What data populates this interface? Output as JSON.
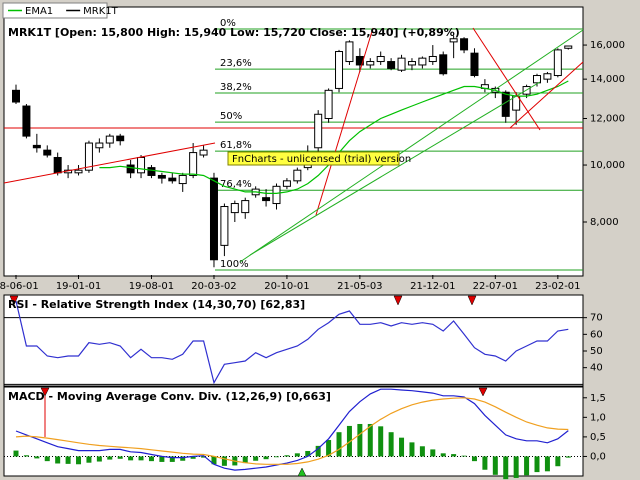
{
  "chart_data": [
    {
      "type": "candlestick",
      "title": "MRK1T [Open: 15,800  High: 15,940  Low: 15,720  Close: 15,940] (+0,89%)",
      "annotation": "FnCharts - unlicensed (trial) version",
      "log_scale": true,
      "ylim": [
        6500,
        18500
      ],
      "yticks": [
        {
          "value": 8000,
          "label": "8,000"
        },
        {
          "value": 10000,
          "label": "10,000"
        },
        {
          "value": 12000,
          "label": "12,000"
        },
        {
          "value": 14000,
          "label": "14,000"
        },
        {
          "value": 16000,
          "label": "16,000"
        }
      ],
      "xticks": [
        {
          "value": 0,
          "label": "18-06-01"
        },
        {
          "value": 6,
          "label": "19-01-01"
        },
        {
          "value": 13,
          "label": "19-08-01"
        },
        {
          "value": 19,
          "label": "20-03-02"
        },
        {
          "value": 26,
          "label": "20-10-01"
        },
        {
          "value": 33,
          "label": "21-05-03"
        },
        {
          "value": 40,
          "label": "21-12-01"
        },
        {
          "value": 46,
          "label": "22-07-01"
        },
        {
          "value": 52,
          "label": "23-02-01"
        }
      ],
      "reference_line": {
        "value": 11560,
        "color": "#e00000"
      },
      "fib_color": "#22a022",
      "fib_levels": [
        {
          "value": 17040,
          "label": "0%"
        },
        {
          "value": 14560,
          "label": "23,6%"
        },
        {
          "value": 13260,
          "label": "38,2%"
        },
        {
          "value": 11830,
          "label": "50%"
        },
        {
          "value": 10560,
          "label": "61,8%"
        },
        {
          "value": 9060,
          "label": "76,4%"
        },
        {
          "value": 6630,
          "label": "100%"
        }
      ],
      "series": [
        {
          "name": "MRK1T",
          "color": "#000000",
          "open": [
            13400,
            12600,
            10800,
            10600,
            10300,
            9700,
            9700,
            9800,
            10700,
            10900,
            11200,
            10000,
            9700,
            9900,
            9600,
            9500,
            9300,
            9600,
            10400,
            9500,
            7300,
            8300,
            8300,
            8900,
            8800,
            8600,
            9200,
            9400,
            9900,
            10700,
            12000,
            13500,
            15000,
            15300,
            14800,
            15000,
            15000,
            14500,
            14800,
            14800,
            15000,
            15400,
            16200,
            16400,
            15500,
            13500,
            13300,
            13300,
            12400,
            13200,
            13800,
            14000,
            14200,
            15800
          ],
          "high": [
            13700,
            12700,
            11300,
            10800,
            10500,
            10000,
            10000,
            11000,
            11100,
            11300,
            11300,
            10200,
            10400,
            10000,
            9700,
            9700,
            9700,
            10900,
            10800,
            9700,
            8600,
            8700,
            8800,
            9200,
            9100,
            9300,
            9500,
            9900,
            10800,
            12400,
            13500,
            15700,
            16300,
            15800,
            15200,
            15600,
            15200,
            15400,
            15200,
            15300,
            16000,
            15600,
            16600,
            16500,
            15800,
            14000,
            13600,
            13400,
            13300,
            13700,
            14300,
            14400,
            15800,
            15940
          ],
          "low": [
            12700,
            11100,
            10500,
            10300,
            9600,
            9500,
            9600,
            9700,
            10500,
            10700,
            10800,
            9500,
            9500,
            9500,
            9300,
            9300,
            9000,
            9500,
            10300,
            6700,
            7000,
            8000,
            8100,
            8800,
            8500,
            8400,
            9100,
            9300,
            9800,
            10500,
            11800,
            13300,
            14800,
            14400,
            14600,
            14800,
            14500,
            14400,
            14500,
            14600,
            14800,
            14200,
            15200,
            15500,
            14100,
            13300,
            13000,
            11800,
            11700,
            13000,
            13600,
            13800,
            14100,
            15720
          ],
          "close": [
            12800,
            11200,
            10700,
            10400,
            9700,
            9800,
            9800,
            10900,
            10900,
            11200,
            11000,
            9700,
            10300,
            9600,
            9500,
            9400,
            9600,
            10500,
            10600,
            6900,
            8500,
            8600,
            8700,
            9100,
            8700,
            9200,
            9400,
            9800,
            10500,
            12200,
            13400,
            15600,
            16200,
            14800,
            15000,
            15300,
            14600,
            15200,
            15000,
            15200,
            15300,
            14300,
            16400,
            15700,
            14200,
            13700,
            13500,
            12100,
            13100,
            13600,
            14200,
            14300,
            15700,
            15940
          ]
        },
        {
          "name": "EMA1",
          "color": "#00c000",
          "values": [
            null,
            null,
            null,
            null,
            null,
            null,
            null,
            null,
            9900,
            9900,
            9950,
            9900,
            9850,
            9800,
            9750,
            9700,
            9650,
            9650,
            9600,
            9400,
            9200,
            9100,
            9000,
            9000,
            8950,
            8950,
            9000,
            9100,
            9300,
            9600,
            10000,
            10500,
            11000,
            11400,
            11700,
            12000,
            12200,
            12400,
            12600,
            12800,
            13000,
            13200,
            13400,
            13600,
            13600,
            13500,
            13400,
            13200,
            13100,
            13100,
            13200,
            13400,
            13600,
            13900
          ]
        }
      ]
    },
    {
      "type": "line",
      "title": "RSI - Relative Strength Index (14,30,70) [62,83]",
      "ylim": [
        29,
        83
      ],
      "yticks": [
        40,
        50,
        60,
        70
      ],
      "hlines": [
        70,
        30
      ],
      "series": [
        {
          "color": "#3030d0",
          "values": [
            80,
            53,
            53,
            47,
            46,
            47,
            47,
            55,
            54,
            55,
            53,
            46,
            51,
            46,
            46,
            45,
            48,
            56,
            56,
            31,
            42,
            43,
            44,
            49,
            46,
            49,
            51,
            53,
            57,
            63,
            67,
            72,
            74,
            66,
            66,
            67,
            65,
            67,
            66,
            67,
            66,
            62,
            68,
            60,
            52,
            48,
            47,
            44,
            50,
            53,
            56,
            56,
            62,
            63
          ]
        }
      ]
    },
    {
      "type": "line",
      "title": "MACD - Moving Average Conv. Div. (12,26,9) [0,663]",
      "ylim": [
        -0.5,
        1.75
      ],
      "yticks": [
        {
          "value": 0,
          "label": "0,0"
        },
        {
          "value": 0.5,
          "label": "0,5"
        },
        {
          "value": 1,
          "label": "1,0"
        },
        {
          "value": 1.5,
          "label": "1,5"
        }
      ],
      "histogram": {
        "color": "#109010",
        "values": [
          0.15,
          0.03,
          -0.05,
          -0.12,
          -0.18,
          -0.19,
          -0.2,
          -0.16,
          -0.13,
          -0.08,
          -0.06,
          -0.1,
          -0.1,
          -0.12,
          -0.14,
          -0.14,
          -0.11,
          -0.06,
          -0.03,
          -0.2,
          -0.24,
          -0.23,
          -0.17,
          -0.11,
          -0.07,
          -0.02,
          0.03,
          0.08,
          0.14,
          0.27,
          0.42,
          0.62,
          0.78,
          0.83,
          0.83,
          0.77,
          0.62,
          0.48,
          0.36,
          0.26,
          0.18,
          0.08,
          0.06,
          0.02,
          -0.12,
          -0.34,
          -0.47,
          -0.58,
          -0.55,
          -0.48,
          -0.4,
          -0.38,
          -0.25,
          -0.03
        ]
      },
      "series": [
        {
          "color": "#2020d0",
          "values": [
            0.65,
            0.55,
            0.45,
            0.35,
            0.25,
            0.2,
            0.15,
            0.15,
            0.15,
            0.18,
            0.18,
            0.12,
            0.1,
            0.05,
            0.0,
            -0.03,
            -0.03,
            0.0,
            0.02,
            -0.2,
            -0.3,
            -0.35,
            -0.33,
            -0.3,
            -0.27,
            -0.22,
            -0.17,
            -0.1,
            0.0,
            0.2,
            0.45,
            0.8,
            1.15,
            1.4,
            1.6,
            1.72,
            1.72,
            1.7,
            1.68,
            1.65,
            1.62,
            1.55,
            1.55,
            1.52,
            1.35,
            1.05,
            0.8,
            0.55,
            0.45,
            0.4,
            0.4,
            0.35,
            0.45,
            0.66
          ]
        },
        {
          "color": "#f0a020",
          "values": [
            0.5,
            0.52,
            0.5,
            0.47,
            0.43,
            0.39,
            0.35,
            0.31,
            0.28,
            0.26,
            0.24,
            0.22,
            0.2,
            0.17,
            0.14,
            0.11,
            0.08,
            0.06,
            0.05,
            0.0,
            -0.06,
            -0.12,
            -0.16,
            -0.19,
            -0.2,
            -0.2,
            -0.2,
            -0.18,
            -0.14,
            -0.07,
            0.03,
            0.18,
            0.37,
            0.57,
            0.77,
            0.95,
            1.1,
            1.22,
            1.32,
            1.39,
            1.44,
            1.47,
            1.49,
            1.5,
            1.47,
            1.39,
            1.27,
            1.13,
            1.0,
            0.88,
            0.8,
            0.73,
            0.7,
            0.69
          ]
        }
      ]
    }
  ]
}
